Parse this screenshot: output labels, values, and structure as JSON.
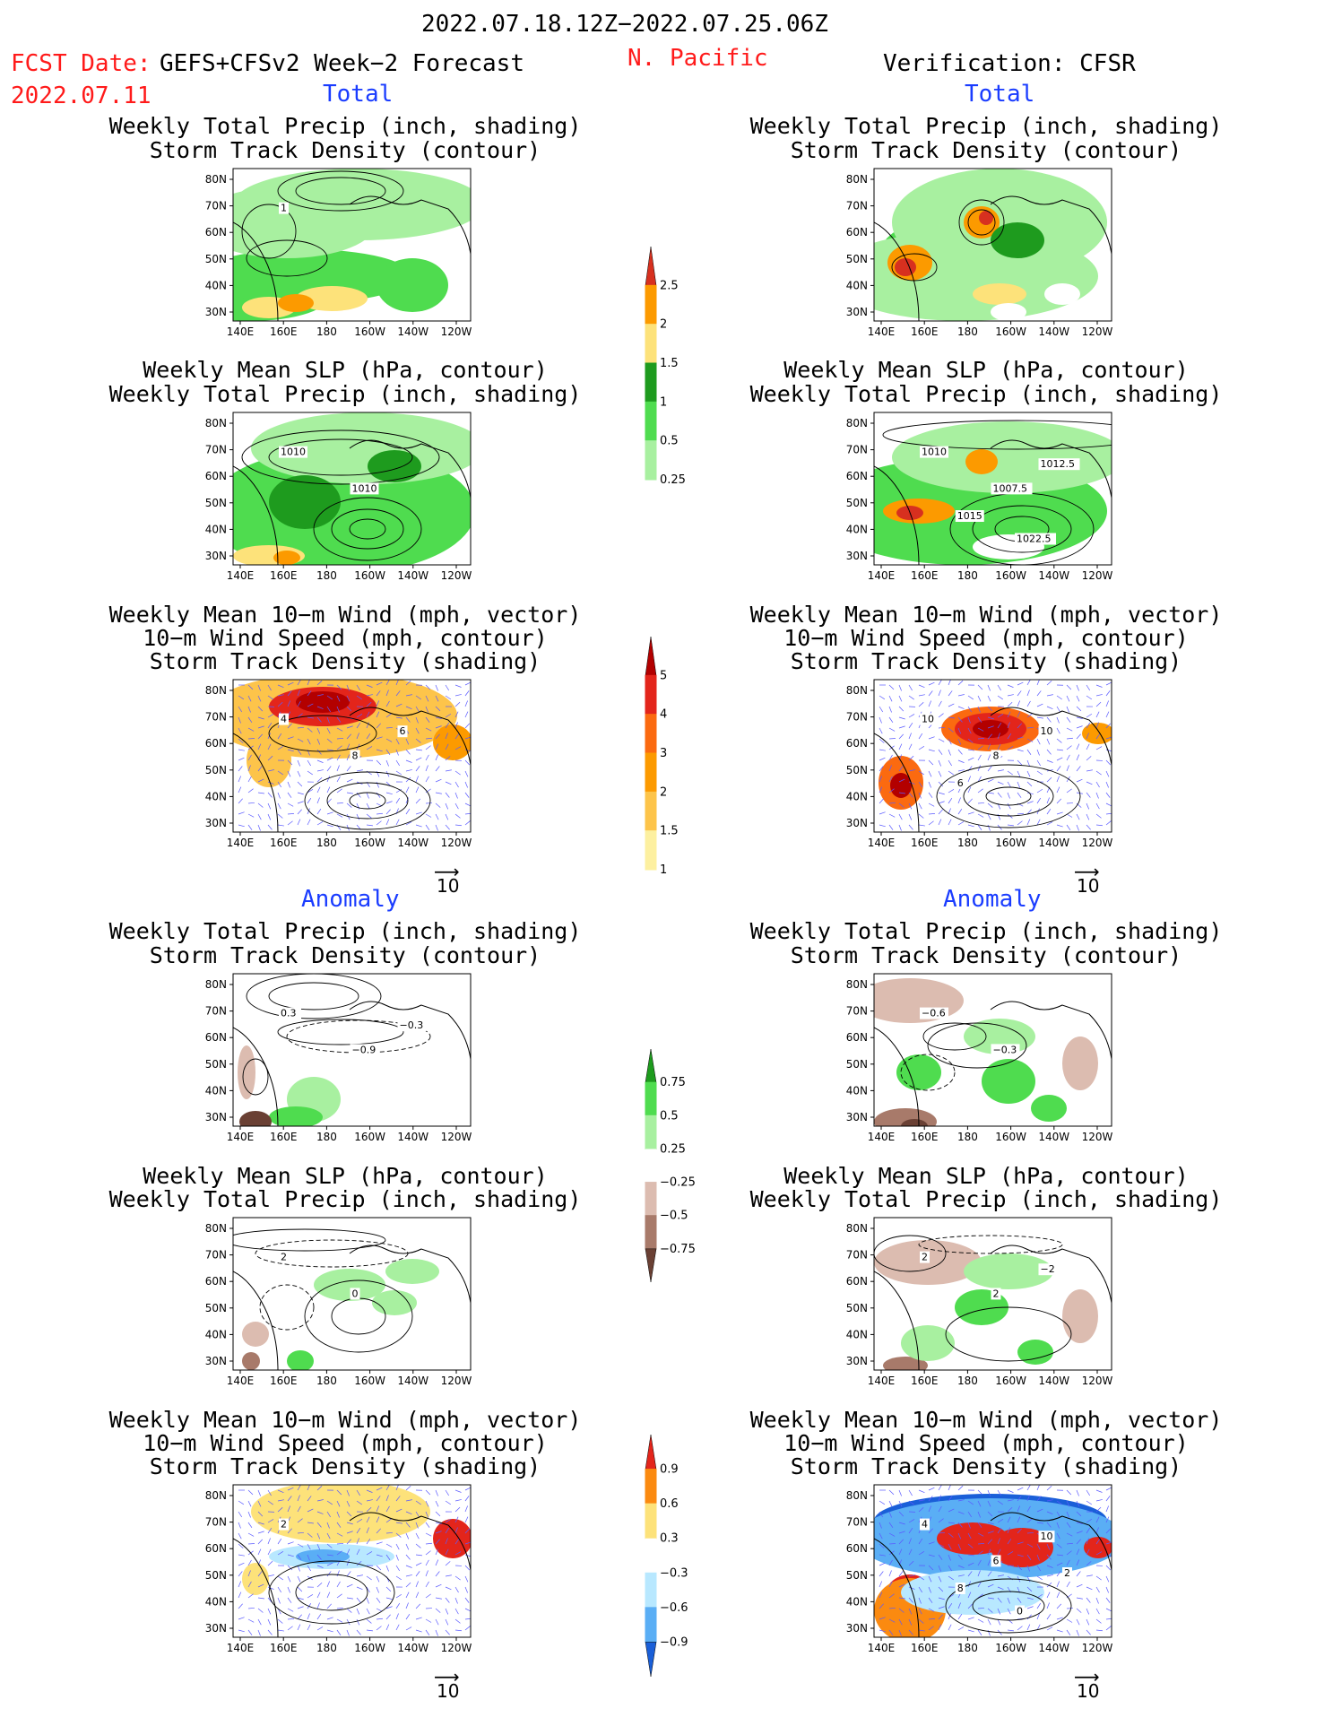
{
  "header": {
    "period": "2022.07.18.12Z−2022.07.25.06Z",
    "fcst_label": "FCST Date:",
    "model": "GEFS+CFSv2 Week−2 Forecast",
    "fcst_date": "2022.07.11",
    "region": "N. Pacific",
    "verification": "Verification: CFSR"
  },
  "sections": {
    "total": "Total",
    "anomaly": "Anomaly"
  },
  "titles": {
    "precip_storm": [
      "Weekly Total Precip (inch, shading)",
      "Storm Track Density (contour)"
    ],
    "slp_precip": [
      "Weekly Mean SLP (hPa, contour)",
      "Weekly Total Precip (inch, shading)"
    ],
    "wind_storm": [
      "Weekly Mean 10−m Wind (mph, vector)",
      "10−m Wind Speed (mph, contour)",
      "Storm Track Density (shading)"
    ]
  },
  "axes": {
    "lat": [
      "80N",
      "70N",
      "60N",
      "50N",
      "40N",
      "30N"
    ],
    "lon": [
      "140E",
      "160E",
      "180",
      "160W",
      "140W",
      "120W"
    ]
  },
  "vector_ref": "10",
  "colorbars": {
    "precip_total": {
      "labels": [
        "2.5",
        "2",
        "1.5",
        "1",
        "0.5",
        "0.25"
      ],
      "colors": [
        "#d7301f",
        "#fc9a00",
        "#fde27a",
        "#1e9b1e",
        "#4fdc4f",
        "#a8f0a0"
      ]
    },
    "storm_total": {
      "labels": [
        "5",
        "4",
        "3",
        "2",
        "1.5",
        "1"
      ],
      "colors": [
        "#b30000",
        "#e3251b",
        "#fb6a10",
        "#fc9a00",
        "#fdc44a",
        "#fdf0a0"
      ]
    },
    "precip_anom": {
      "labels": [
        "0.75",
        "0.5",
        "0.25",
        "−0.25",
        "−0.5",
        "−0.75"
      ],
      "colors": [
        "#1e9b1e",
        "#4fdc4f",
        "#a8f0a0",
        "#ffffff",
        "#dcbcb0",
        "#a87a6a",
        "#6a4034"
      ]
    },
    "storm_anom": {
      "labels": [
        "0.9",
        "0.6",
        "0.3",
        "−0.3",
        "−0.6",
        "−0.9"
      ],
      "colors": [
        "#e3251b",
        "#fb8a10",
        "#fde27a",
        "#ffffff",
        "#b8e8ff",
        "#5aaef5",
        "#1a5fd8"
      ]
    }
  },
  "contour_labels": {
    "p1l": [
      "1"
    ],
    "p2l": [
      "1010",
      "1010"
    ],
    "p2r": [
      "1010",
      "1007.5",
      "1012.5",
      "1015",
      "1022.5"
    ],
    "p3l": [
      "4",
      "8",
      "6"
    ],
    "p3r": [
      "10",
      "8",
      "10",
      "6"
    ],
    "p4l": [
      "0.3",
      "−0.9",
      "−0.3"
    ],
    "p4r": [
      "−0.6",
      "−0.3"
    ],
    "p5l": [
      "2",
      "0"
    ],
    "p5r": [
      "2",
      "2",
      "−2"
    ],
    "p6l": [
      "2"
    ],
    "p6r": [
      "4",
      "6",
      "10",
      "8",
      "0",
      "2"
    ]
  }
}
